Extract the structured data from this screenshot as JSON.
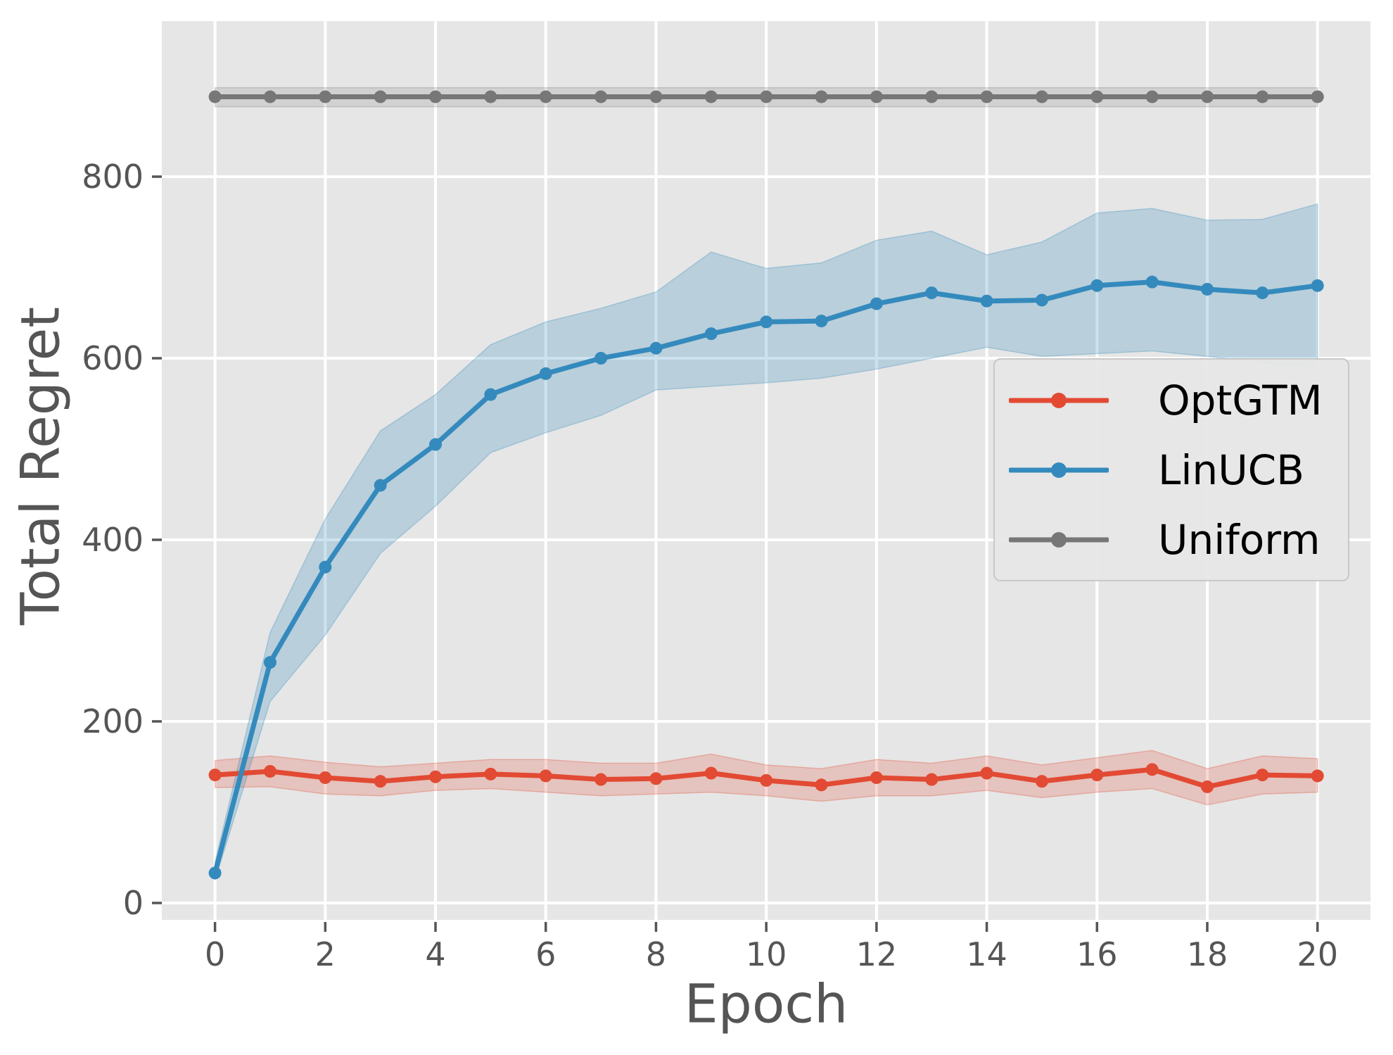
{
  "colors": {
    "figure_bg": "#ffffff",
    "plot_bg": "#e6e6e6",
    "grid": "#ffffff",
    "tick_color": "#555555",
    "label_color": "#555555",
    "legend_bg": "#e7e7e7",
    "legend_border": "#c8c8c8",
    "legend_text": "#000000"
  },
  "chart_data": {
    "type": "line",
    "title": "",
    "xlabel": "Epoch",
    "ylabel": "Total Regret",
    "grid": true,
    "legend_position": "center right",
    "x": [
      0,
      1,
      2,
      3,
      4,
      5,
      6,
      7,
      8,
      9,
      10,
      11,
      12,
      13,
      14,
      15,
      16,
      17,
      18,
      19,
      20
    ],
    "xticks": [
      0,
      2,
      4,
      6,
      8,
      10,
      12,
      14,
      16,
      18,
      20
    ],
    "yticks": [
      0,
      200,
      400,
      600,
      800
    ],
    "xlim": [
      -0.95,
      20.95
    ],
    "ylim": [
      -19,
      971
    ],
    "series": [
      {
        "name": "OptGTM",
        "color": "#E24A33",
        "band_opacity": 0.22,
        "mean": [
          141,
          145,
          138,
          134,
          139,
          142,
          140,
          136,
          137,
          143,
          135,
          130,
          138,
          136,
          143,
          134,
          141,
          147,
          128,
          141,
          140
        ],
        "lower": [
          127,
          128,
          120,
          118,
          124,
          126,
          122,
          118,
          120,
          122,
          118,
          112,
          118,
          118,
          124,
          116,
          122,
          126,
          108,
          120,
          122
        ],
        "upper": [
          157,
          162,
          155,
          150,
          154,
          158,
          158,
          154,
          154,
          164,
          152,
          148,
          158,
          154,
          162,
          152,
          160,
          168,
          148,
          162,
          159
        ]
      },
      {
        "name": "LinUCB",
        "color": "#348ABD",
        "band_opacity": 0.25,
        "mean": [
          33,
          265,
          370,
          460,
          505,
          560,
          583,
          600,
          611,
          627,
          640,
          641,
          660,
          672,
          663,
          664,
          680,
          684,
          676,
          672,
          680
        ],
        "lower": [
          25,
          222,
          295,
          385,
          437,
          496,
          518,
          537,
          565,
          569,
          573,
          578,
          588,
          600,
          612,
          602,
          605,
          608,
          602,
          595,
          591
        ],
        "upper": [
          45,
          298,
          423,
          520,
          560,
          615,
          640,
          655,
          673,
          717,
          699,
          705,
          730,
          740,
          714,
          728,
          760,
          765,
          752,
          753,
          770
        ]
      },
      {
        "name": "Uniform",
        "color": "#777777",
        "band_opacity": 0.18,
        "mean": [
          888,
          888,
          888,
          888,
          888,
          888,
          888,
          888,
          888,
          888,
          888,
          888,
          888,
          888,
          888,
          888,
          888,
          888,
          888,
          888,
          888
        ],
        "lower": [
          877,
          877,
          877,
          877,
          877,
          877,
          877,
          877,
          877,
          877,
          877,
          877,
          877,
          877,
          877,
          877,
          877,
          877,
          877,
          877,
          877
        ],
        "upper": [
          898,
          898,
          898,
          898,
          898,
          898,
          898,
          898,
          898,
          898,
          898,
          898,
          898,
          898,
          898,
          898,
          898,
          898,
          898,
          898,
          898
        ]
      }
    ]
  },
  "legend": {
    "items": [
      "OptGTM",
      "LinUCB",
      "Uniform"
    ]
  }
}
